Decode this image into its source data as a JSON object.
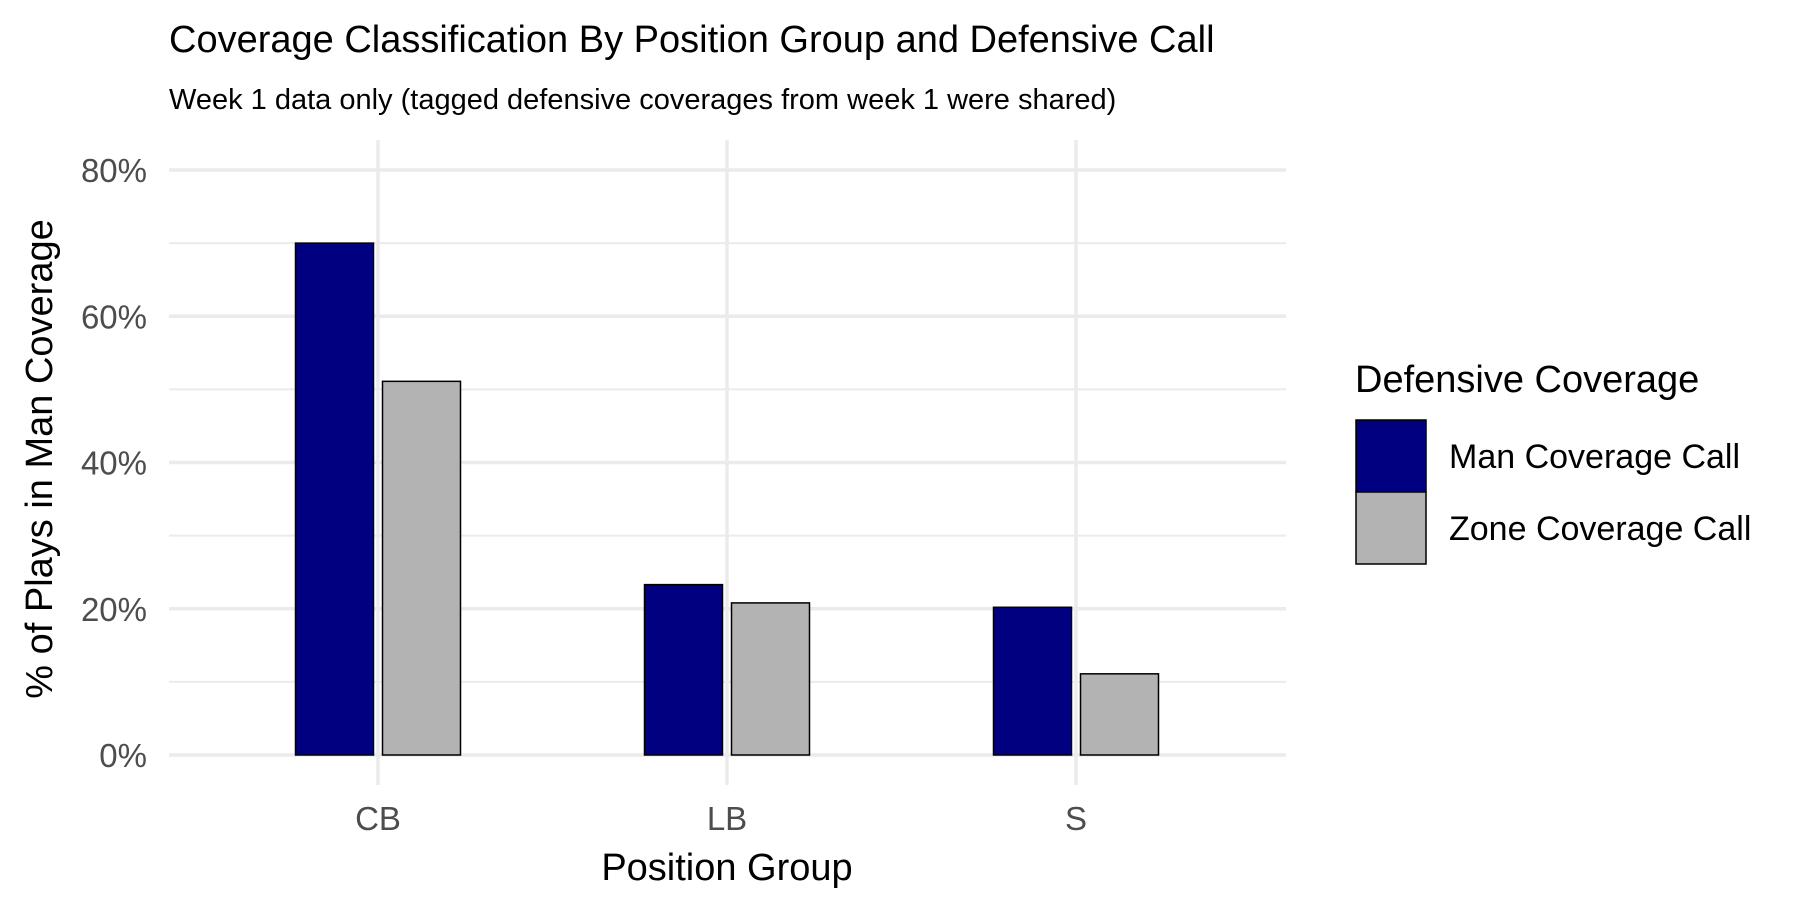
{
  "chart_data": {
    "type": "bar",
    "title": "Coverage Classification By Position Group and Defensive Call",
    "subtitle": "Week 1 data only (tagged defensive coverages from week 1 were shared)",
    "xlabel": "Position Group",
    "ylabel": "% of Plays in Man Coverage",
    "categories": [
      "CB",
      "LB",
      "S"
    ],
    "series": [
      {
        "name": "Man Coverage Call",
        "color": "#000080",
        "values": [
          0.7,
          0.233,
          0.202
        ]
      },
      {
        "name": "Zone Coverage Call",
        "color": "#b3b3b3",
        "values": [
          0.511,
          0.208,
          0.111
        ]
      }
    ],
    "ylim": [
      0,
      0.8
    ],
    "yticks": [
      0,
      0.2,
      0.4,
      0.6,
      0.8
    ],
    "ytick_labels": [
      "0%",
      "20%",
      "40%",
      "60%",
      "80%"
    ],
    "grid": true,
    "legend": {
      "title": "Defensive Coverage",
      "placement": "right"
    }
  }
}
